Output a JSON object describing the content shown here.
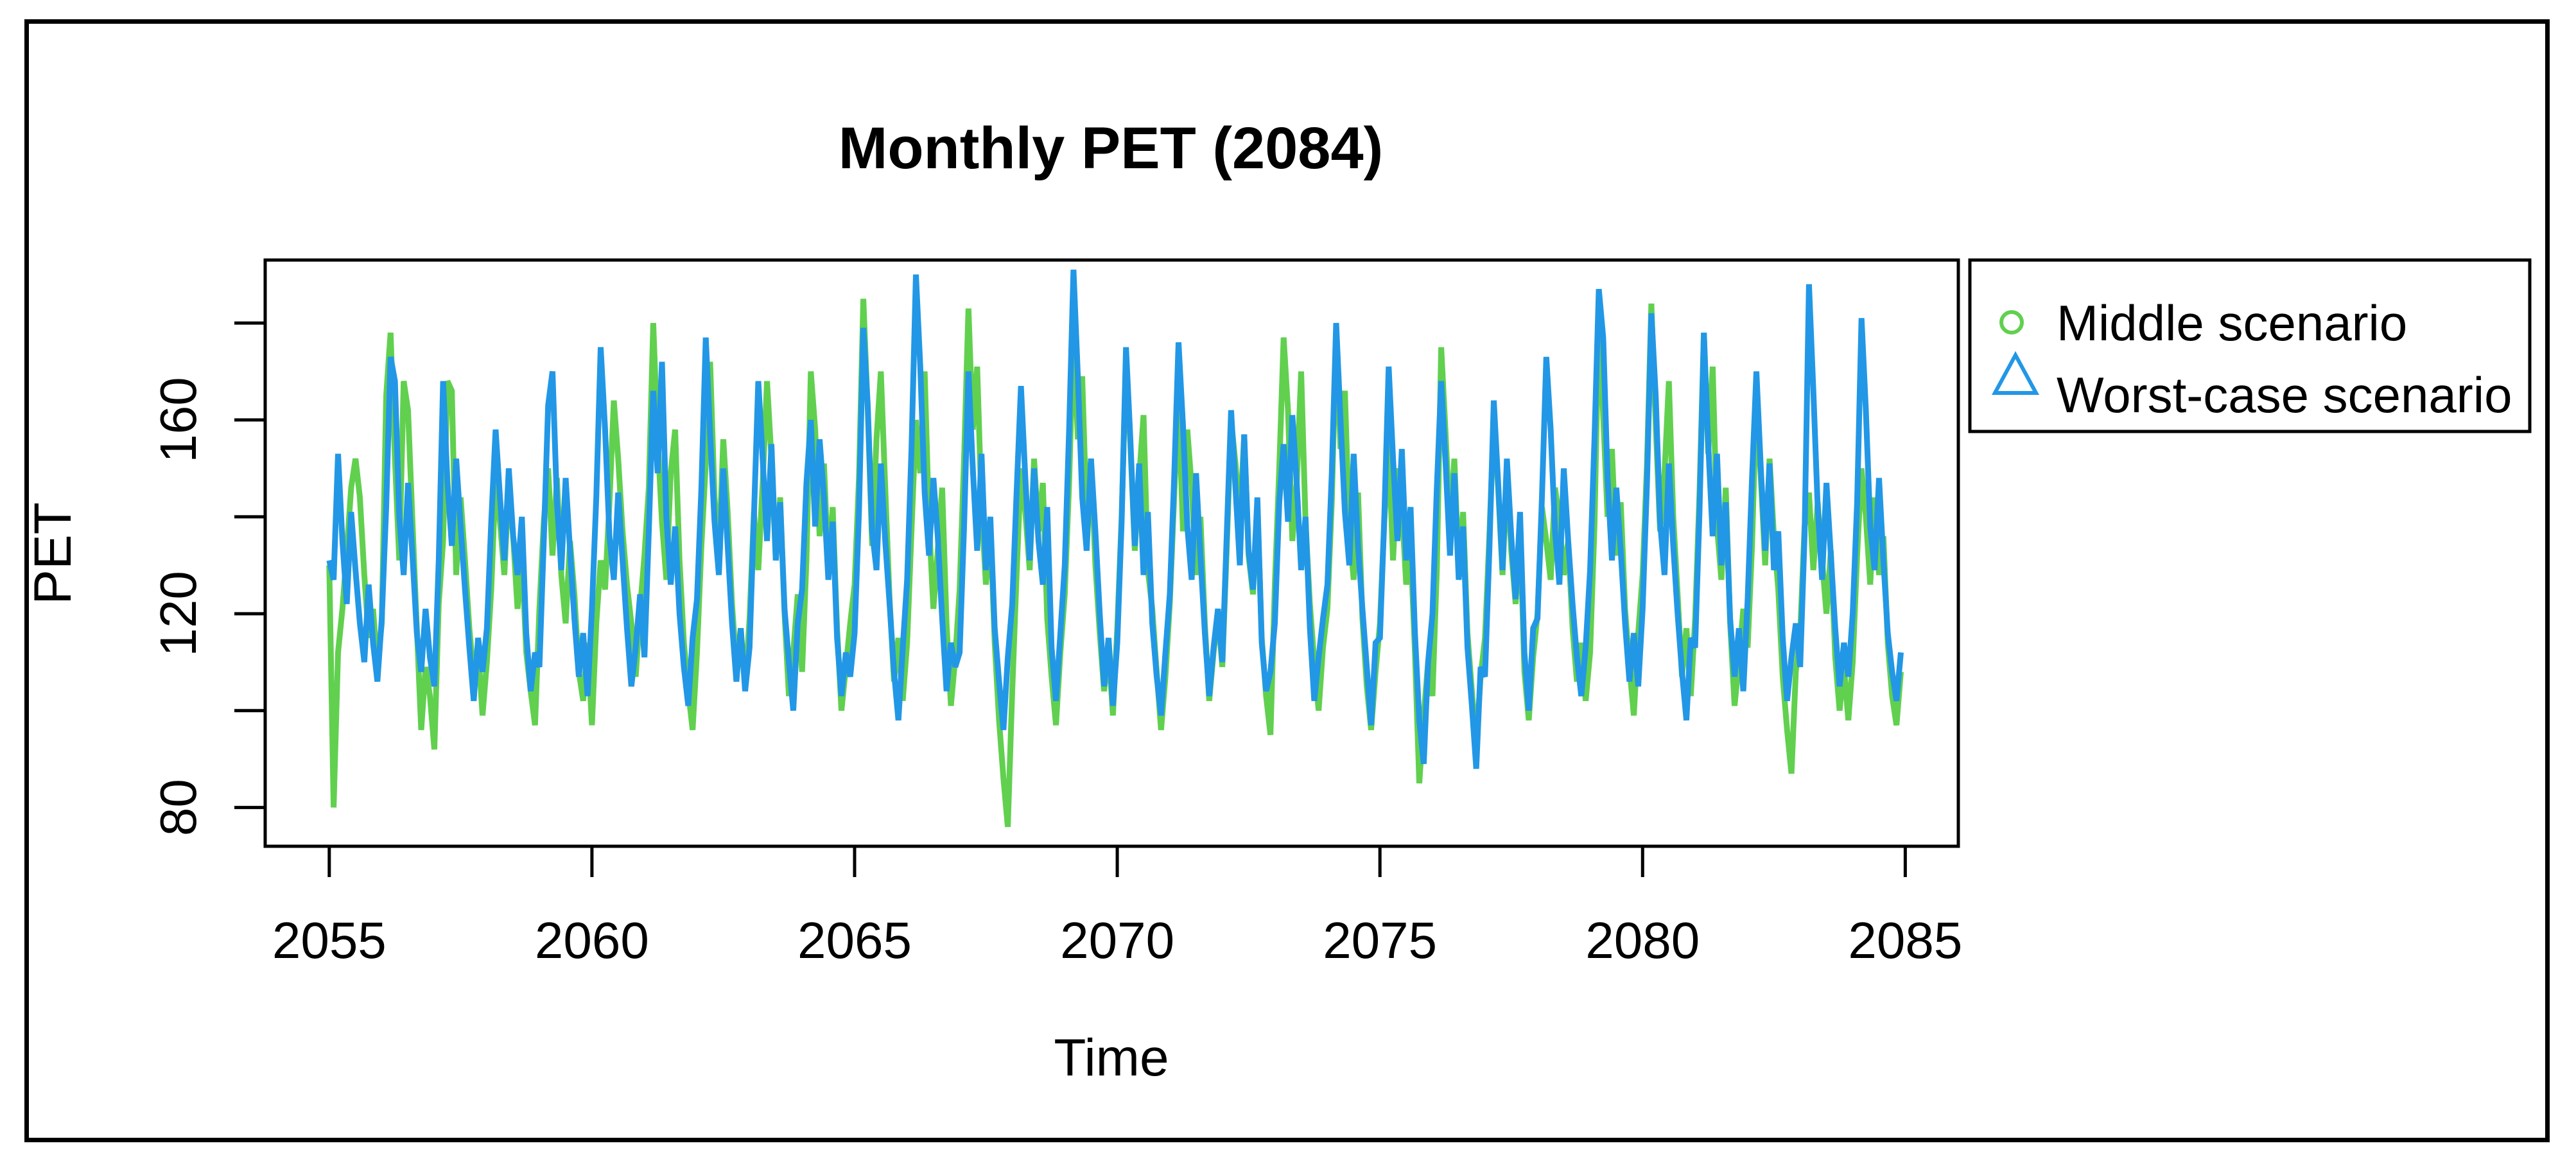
{
  "figure": {
    "background": "#ffffff",
    "border_color": "#000000",
    "text_color": "#000000"
  },
  "chart_data": {
    "type": "line",
    "title": "Monthly PET (2084)",
    "xlabel": "Time",
    "ylabel": "PET",
    "grid": false,
    "x_start_year": 2055,
    "points_per_year": 12,
    "xlim": [
      2053.78,
      2086.01
    ],
    "ylim": [
      72,
      193
    ],
    "x_ticks": [
      2055,
      2060,
      2065,
      2070,
      2075,
      2080,
      2085
    ],
    "y_ticks": [
      80,
      100,
      120,
      140,
      160,
      180
    ],
    "y_ticks_labeled": [
      80,
      120,
      160
    ],
    "legend": {
      "position": "outside-top-right",
      "entries": [
        {
          "label": "Middle scenario",
          "marker": "circle-open",
          "color": "#61D04F"
        },
        {
          "label": "Worst-case scenario",
          "marker": "triangle-open",
          "color": "#2297E6"
        }
      ]
    },
    "series": [
      {
        "name": "Middle scenario",
        "color": "#61D04F",
        "values": [
          130,
          80,
          112,
          121,
          133,
          146,
          152,
          144,
          128,
          115,
          121,
          109,
          118,
          165,
          178,
          152,
          131,
          168,
          162,
          139,
          117,
          96,
          109,
          103,
          92,
          122,
          135,
          168,
          166,
          128,
          144,
          131,
          117,
          107,
          113,
          99,
          110,
          125,
          148,
          139,
          128,
          147,
          136,
          121,
          132,
          112,
          104,
          97,
          121,
          139,
          150,
          132,
          148,
          128,
          118,
          135,
          124,
          108,
          102,
          114,
          97,
          118,
          131,
          125,
          143,
          164,
          152,
          137,
          126,
          118,
          107,
          121,
          132,
          146,
          180,
          156,
          139,
          127,
          149,
          158,
          131,
          114,
          104,
          96,
          112,
          134,
          151,
          172,
          144,
          132,
          156,
          141,
          122,
          109,
          117,
          105,
          119,
          141,
          129,
          147,
          168,
          152,
          131,
          144,
          120,
          103,
          112,
          124,
          108,
          131,
          170,
          158,
          136,
          151,
          129,
          142,
          117,
          100,
          109,
          118,
          126,
          148,
          185,
          162,
          134,
          156,
          170,
          146,
          123,
          106,
          115,
          102,
          114,
          137,
          160,
          149,
          170,
          139,
          121,
          133,
          146,
          118,
          101,
          111,
          125,
          152,
          183,
          158,
          171,
          142,
          126,
          138,
          114,
          98,
          86,
          76,
          104,
          128,
          150,
          141,
          129,
          152,
          137,
          147,
          119,
          107,
          97,
          112,
          124,
          147,
          178,
          156,
          169,
          139,
          152,
          130,
          116,
          104,
          113,
          99,
          117,
          140,
          172,
          155,
          133,
          148,
          161,
          129,
          121,
          108,
          96,
          107,
          122,
          144,
          165,
          137,
          158,
          146,
          128,
          140,
          118,
          102,
          112,
          120,
          109,
          133,
          160,
          151,
          139,
          157,
          132,
          124,
          143,
          115,
          103,
          95,
          126,
          150,
          177,
          162,
          135,
          147,
          170,
          139,
          122,
          110,
          100,
          113,
          121,
          143,
          178,
          154,
          166,
          137,
          127,
          145,
          119,
          105,
          96,
          108,
          118,
          139,
          155,
          131,
          150,
          142,
          126,
          134,
          112,
          85,
          99,
          110,
          103,
          129,
          175,
          157,
          138,
          152,
          129,
          141,
          116,
          104,
          93,
          107,
          115,
          136,
          160,
          146,
          128,
          149,
          133,
          122,
          138,
          108,
          98,
          111,
          120,
          142,
          135,
          127,
          146,
          139,
          128,
          135,
          117,
          106,
          114,
          102,
          112,
          138,
          182,
          161,
          140,
          154,
          132,
          143,
          121,
          109,
          99,
          116,
          128,
          151,
          184,
          159,
          137,
          149,
          168,
          140,
          124,
          107,
          117,
          103,
          119,
          145,
          178,
          153,
          171,
          138,
          127,
          146,
          118,
          101,
          110,
          121,
          113,
          134,
          165,
          148,
          130,
          152,
          136,
          125,
          107,
          96,
          87,
          108,
          116,
          138,
          145,
          129,
          143,
          131,
          120,
          133,
          111,
          100,
          109,
          98,
          110,
          132,
          150,
          140,
          126,
          144,
          128,
          136,
          114,
          103,
          97,
          108
        ]
      },
      {
        "name": "Worst-case scenario",
        "color": "#2297E6",
        "values": [
          131,
          127,
          153,
          135,
          122,
          141,
          129,
          118,
          110,
          126,
          114,
          106,
          119,
          142,
          173,
          168,
          140,
          128,
          147,
          132,
          116,
          108,
          121,
          111,
          105,
          131,
          168,
          147,
          134,
          152,
          138,
          125,
          113,
          102,
          115,
          108,
          117,
          139,
          158,
          144,
          131,
          150,
          136,
          128,
          140,
          116,
          104,
          112,
          109,
          135,
          163,
          170,
          143,
          129,
          148,
          133,
          119,
          107,
          116,
          103,
          121,
          144,
          175,
          158,
          136,
          127,
          145,
          131,
          117,
          105,
          113,
          124,
          111,
          137,
          166,
          149,
          172,
          140,
          126,
          138,
          120,
          109,
          101,
          115,
          123,
          146,
          177,
          157,
          139,
          128,
          150,
          134,
          118,
          106,
          117,
          104,
          113,
          140,
          168,
          152,
          135,
          155,
          131,
          143,
          121,
          110,
          100,
          118,
          125,
          147,
          160,
          138,
          156,
          144,
          127,
          139,
          115,
          103,
          112,
          107,
          116,
          141,
          179,
          163,
          137,
          129,
          151,
          135,
          122,
          108,
          98,
          113,
          127,
          154,
          190,
          171,
          145,
          132,
          148,
          136,
          119,
          104,
          114,
          109,
          112,
          138,
          170,
          150,
          133,
          153,
          129,
          140,
          117,
          106,
          96,
          111,
          122,
          145,
          167,
          148,
          131,
          150,
          135,
          126,
          142,
          113,
          102,
          116,
          130,
          158,
          191,
          169,
          144,
          133,
          152,
          137,
          120,
          105,
          115,
          101,
          114,
          139,
          175,
          156,
          134,
          151,
          128,
          141,
          118,
          107,
          99,
          112,
          124,
          148,
          176,
          159,
          138,
          127,
          149,
          132,
          116,
          103,
          113,
          121,
          110,
          136,
          162,
          146,
          130,
          157,
          133,
          125,
          144,
          114,
          104,
          108,
          118,
          143,
          155,
          139,
          161,
          147,
          129,
          140,
          117,
          102,
          111,
          119,
          126,
          149,
          180,
          160,
          141,
          130,
          153,
          134,
          121,
          109,
          97,
          114,
          115,
          140,
          171,
          152,
          135,
          154,
          131,
          142,
          116,
          98,
          89,
          110,
          120,
          146,
          168,
          151,
          132,
          149,
          127,
          138,
          113,
          101,
          88,
          109,
          107,
          133,
          164,
          147,
          129,
          152,
          136,
          123,
          141,
          112,
          100,
          117,
          119,
          144,
          173,
          158,
          137,
          126,
          150,
          135,
          122,
          111,
          103,
          113,
          129,
          156,
          187,
          177,
          148,
          131,
          146,
          133,
          118,
          106,
          116,
          105,
          121,
          147,
          182,
          165,
          139,
          128,
          151,
          134,
          120,
          108,
          98,
          115,
          113,
          141,
          178,
          155,
          136,
          153,
          130,
          143,
          119,
          107,
          117,
          104,
          123,
          148,
          170,
          150,
          133,
          151,
          129,
          137,
          115,
          102,
          111,
          118,
          109,
          136,
          188,
          166,
          142,
          127,
          147,
          132,
          117,
          105,
          114,
          107,
          120,
          143,
          181,
          162,
          138,
          129,
          148,
          131,
          116,
          108,
          102,
          112
        ]
      }
    ]
  }
}
